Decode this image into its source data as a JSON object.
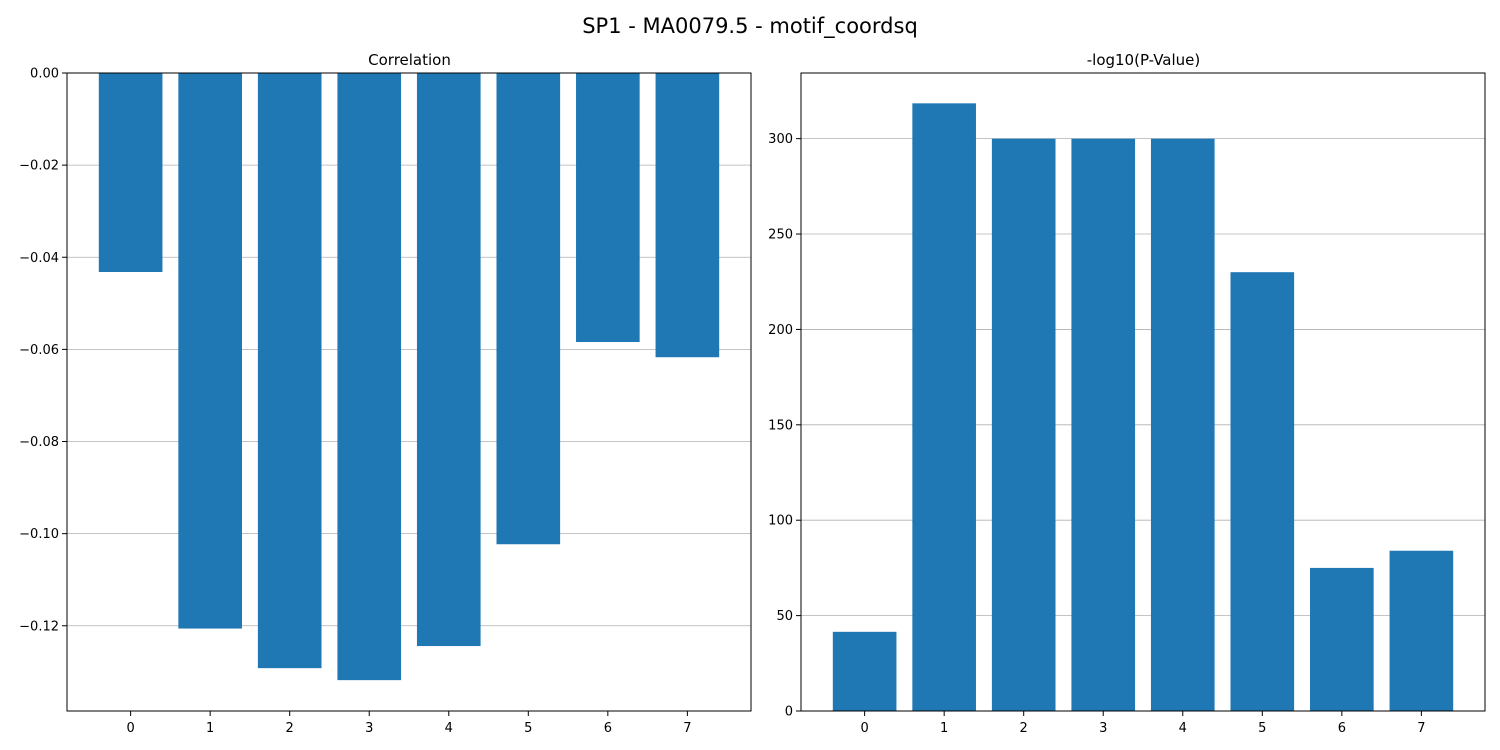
{
  "figure": {
    "title": "SP1 - MA0079.5 - motif_coordsq"
  },
  "chart_data": [
    {
      "type": "bar",
      "title": "Correlation",
      "xlabel": "",
      "ylabel": "",
      "categories": [
        "0",
        "1",
        "2",
        "3",
        "4",
        "5",
        "6",
        "7"
      ],
      "values": [
        -0.0432,
        -0.1206,
        -0.1292,
        -0.1318,
        -0.1244,
        -0.1023,
        -0.0584,
        -0.0617
      ],
      "ylim": [
        -0.1385,
        0.0
      ],
      "yticks": [
        0.0,
        -0.02,
        -0.04,
        -0.06,
        -0.08,
        -0.1,
        -0.12
      ],
      "ytick_labels": [
        "0.00",
        "−0.02",
        "−0.04",
        "−0.06",
        "−0.08",
        "−0.10",
        "−0.12"
      ],
      "grid": "y",
      "color": "#1f77b4"
    },
    {
      "type": "bar",
      "title": "-log10(P-Value)",
      "xlabel": "",
      "ylabel": "",
      "categories": [
        "0",
        "1",
        "2",
        "3",
        "4",
        "5",
        "6",
        "7"
      ],
      "values": [
        41.5,
        318.5,
        300.0,
        300.0,
        300.0,
        230.0,
        75.0,
        84.0
      ],
      "ylim": [
        0,
        334.4
      ],
      "yticks": [
        0,
        50,
        100,
        150,
        200,
        250,
        300
      ],
      "ytick_labels": [
        "0",
        "50",
        "100",
        "150",
        "200",
        "250",
        "300"
      ],
      "grid": "y",
      "color": "#1f77b4"
    }
  ]
}
